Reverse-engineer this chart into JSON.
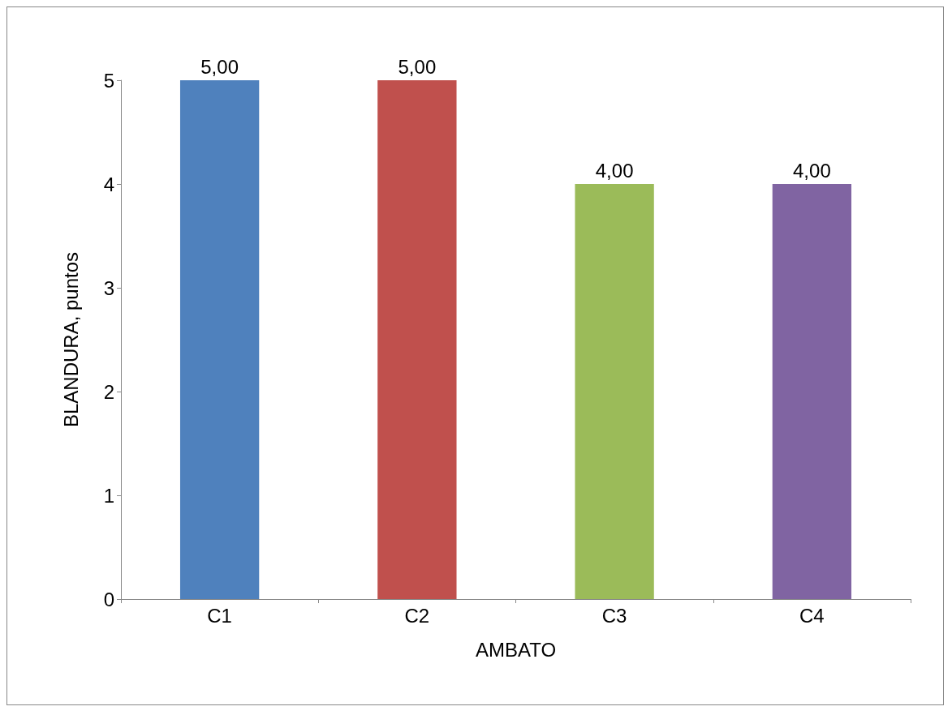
{
  "chart_data": {
    "type": "bar",
    "xlabel": "AMBATO",
    "ylabel": "BLANDURA, puntos",
    "categories": [
      "C1",
      "C2",
      "C3",
      "C4"
    ],
    "values": [
      5,
      5,
      4,
      4
    ],
    "colors": [
      "#4f81bd",
      "#c0504d",
      "#9bbb59",
      "#8064a2"
    ],
    "value_labels": [
      "5,00",
      "5,00",
      "4,00",
      "4,00"
    ],
    "ylim": [
      0,
      5
    ],
    "yticks": [
      0,
      1,
      2,
      3,
      4,
      5
    ],
    "grid": false
  }
}
